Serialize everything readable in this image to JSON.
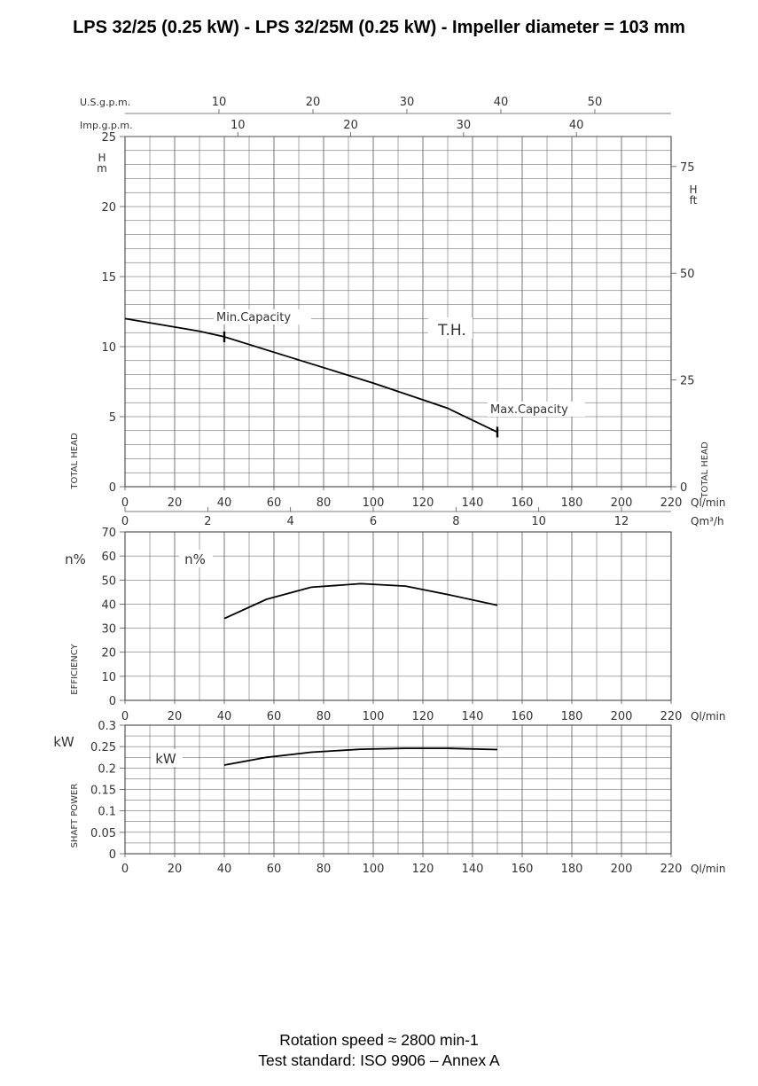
{
  "title": "LPS 32/25 (0.25 kW) - LPS 32/25M (0.25 kW) - Impeller diameter = 103 mm",
  "footer": {
    "line1": "Rotation speed ≈ 2800 min-1",
    "line2": "Test standard: ISO 9906 – Annex A"
  },
  "colors": {
    "grid": "#555555",
    "curve": "#000000",
    "text": "#333333"
  },
  "chart_data": [
    {
      "type": "line",
      "name": "head",
      "ylabel": "TOTAL HEAD",
      "ylabel_right": "TOTAL HEAD",
      "y_unit": "H m",
      "y2_unit": "H ft",
      "xlabel": "Ql/min",
      "xlim": [
        0,
        220
      ],
      "ylim": [
        0,
        25
      ],
      "x_ticks": [
        "0",
        "20",
        "40",
        "60",
        "80",
        "100",
        "120",
        "140",
        "160",
        "180",
        "200",
        "220"
      ],
      "y_ticks": [
        "0",
        "5",
        "10",
        "15",
        "20",
        "25"
      ],
      "y2_ticks": [
        "0",
        "25",
        "50",
        "75"
      ],
      "grid": true,
      "top_axes": [
        {
          "label": "U.S.g.p.m.",
          "ticks": [
            "10",
            "20",
            "30",
            "40",
            "50"
          ]
        },
        {
          "label": "Imp.g.p.m.",
          "ticks": [
            "10",
            "20",
            "30",
            "40"
          ]
        }
      ],
      "bottom_axis2": {
        "label": "Qm³/h",
        "ticks": [
          "0",
          "2",
          "4",
          "6",
          "8",
          "10",
          "12"
        ]
      },
      "series": [
        {
          "name": "T.H.",
          "x": [
            0,
            10,
            20,
            30,
            40,
            60,
            80,
            100,
            120,
            130,
            150
          ],
          "y": [
            12.0,
            11.7,
            11.4,
            11.1,
            10.7,
            9.6,
            8.5,
            7.4,
            6.2,
            5.6,
            3.9
          ]
        }
      ],
      "annotations": [
        {
          "text": "Min.Capacity",
          "x": 40,
          "y": 10.7
        },
        {
          "text": "Max.Capacity",
          "x": 150,
          "y": 3.9
        }
      ]
    },
    {
      "type": "line",
      "name": "efficiency",
      "ylabel": "EFFICIENCY",
      "y_unit": "n%",
      "xlabel": "Ql/min",
      "xlim": [
        0,
        220
      ],
      "ylim": [
        0,
        70
      ],
      "x_ticks": [
        "0",
        "20",
        "40",
        "60",
        "80",
        "100",
        "120",
        "140",
        "160",
        "180",
        "200",
        "220"
      ],
      "y_ticks": [
        "0",
        "10",
        "20",
        "30",
        "40",
        "50",
        "60",
        "70"
      ],
      "grid": true,
      "series": [
        {
          "name": "n%",
          "x": [
            40,
            57,
            75,
            95,
            113,
            130,
            150
          ],
          "y": [
            34,
            42,
            47,
            48.5,
            47.5,
            44,
            39.5
          ]
        }
      ]
    },
    {
      "type": "line",
      "name": "shaft-power",
      "ylabel": "SHAFT POWER",
      "y_unit": "kW",
      "xlabel": "Ql/min",
      "xlim": [
        0,
        220
      ],
      "ylim": [
        0,
        0.3
      ],
      "x_ticks": [
        "0",
        "20",
        "40",
        "60",
        "80",
        "100",
        "120",
        "140",
        "160",
        "180",
        "200",
        "220"
      ],
      "y_ticks": [
        "0",
        "0.05",
        "0.1",
        "0.15",
        "0.2",
        "0.25",
        "0.3"
      ],
      "grid": true,
      "series": [
        {
          "name": "kW",
          "x": [
            40,
            57,
            75,
            95,
            113,
            130,
            150
          ],
          "y": [
            0.207,
            0.225,
            0.237,
            0.244,
            0.246,
            0.246,
            0.243
          ]
        }
      ]
    }
  ]
}
